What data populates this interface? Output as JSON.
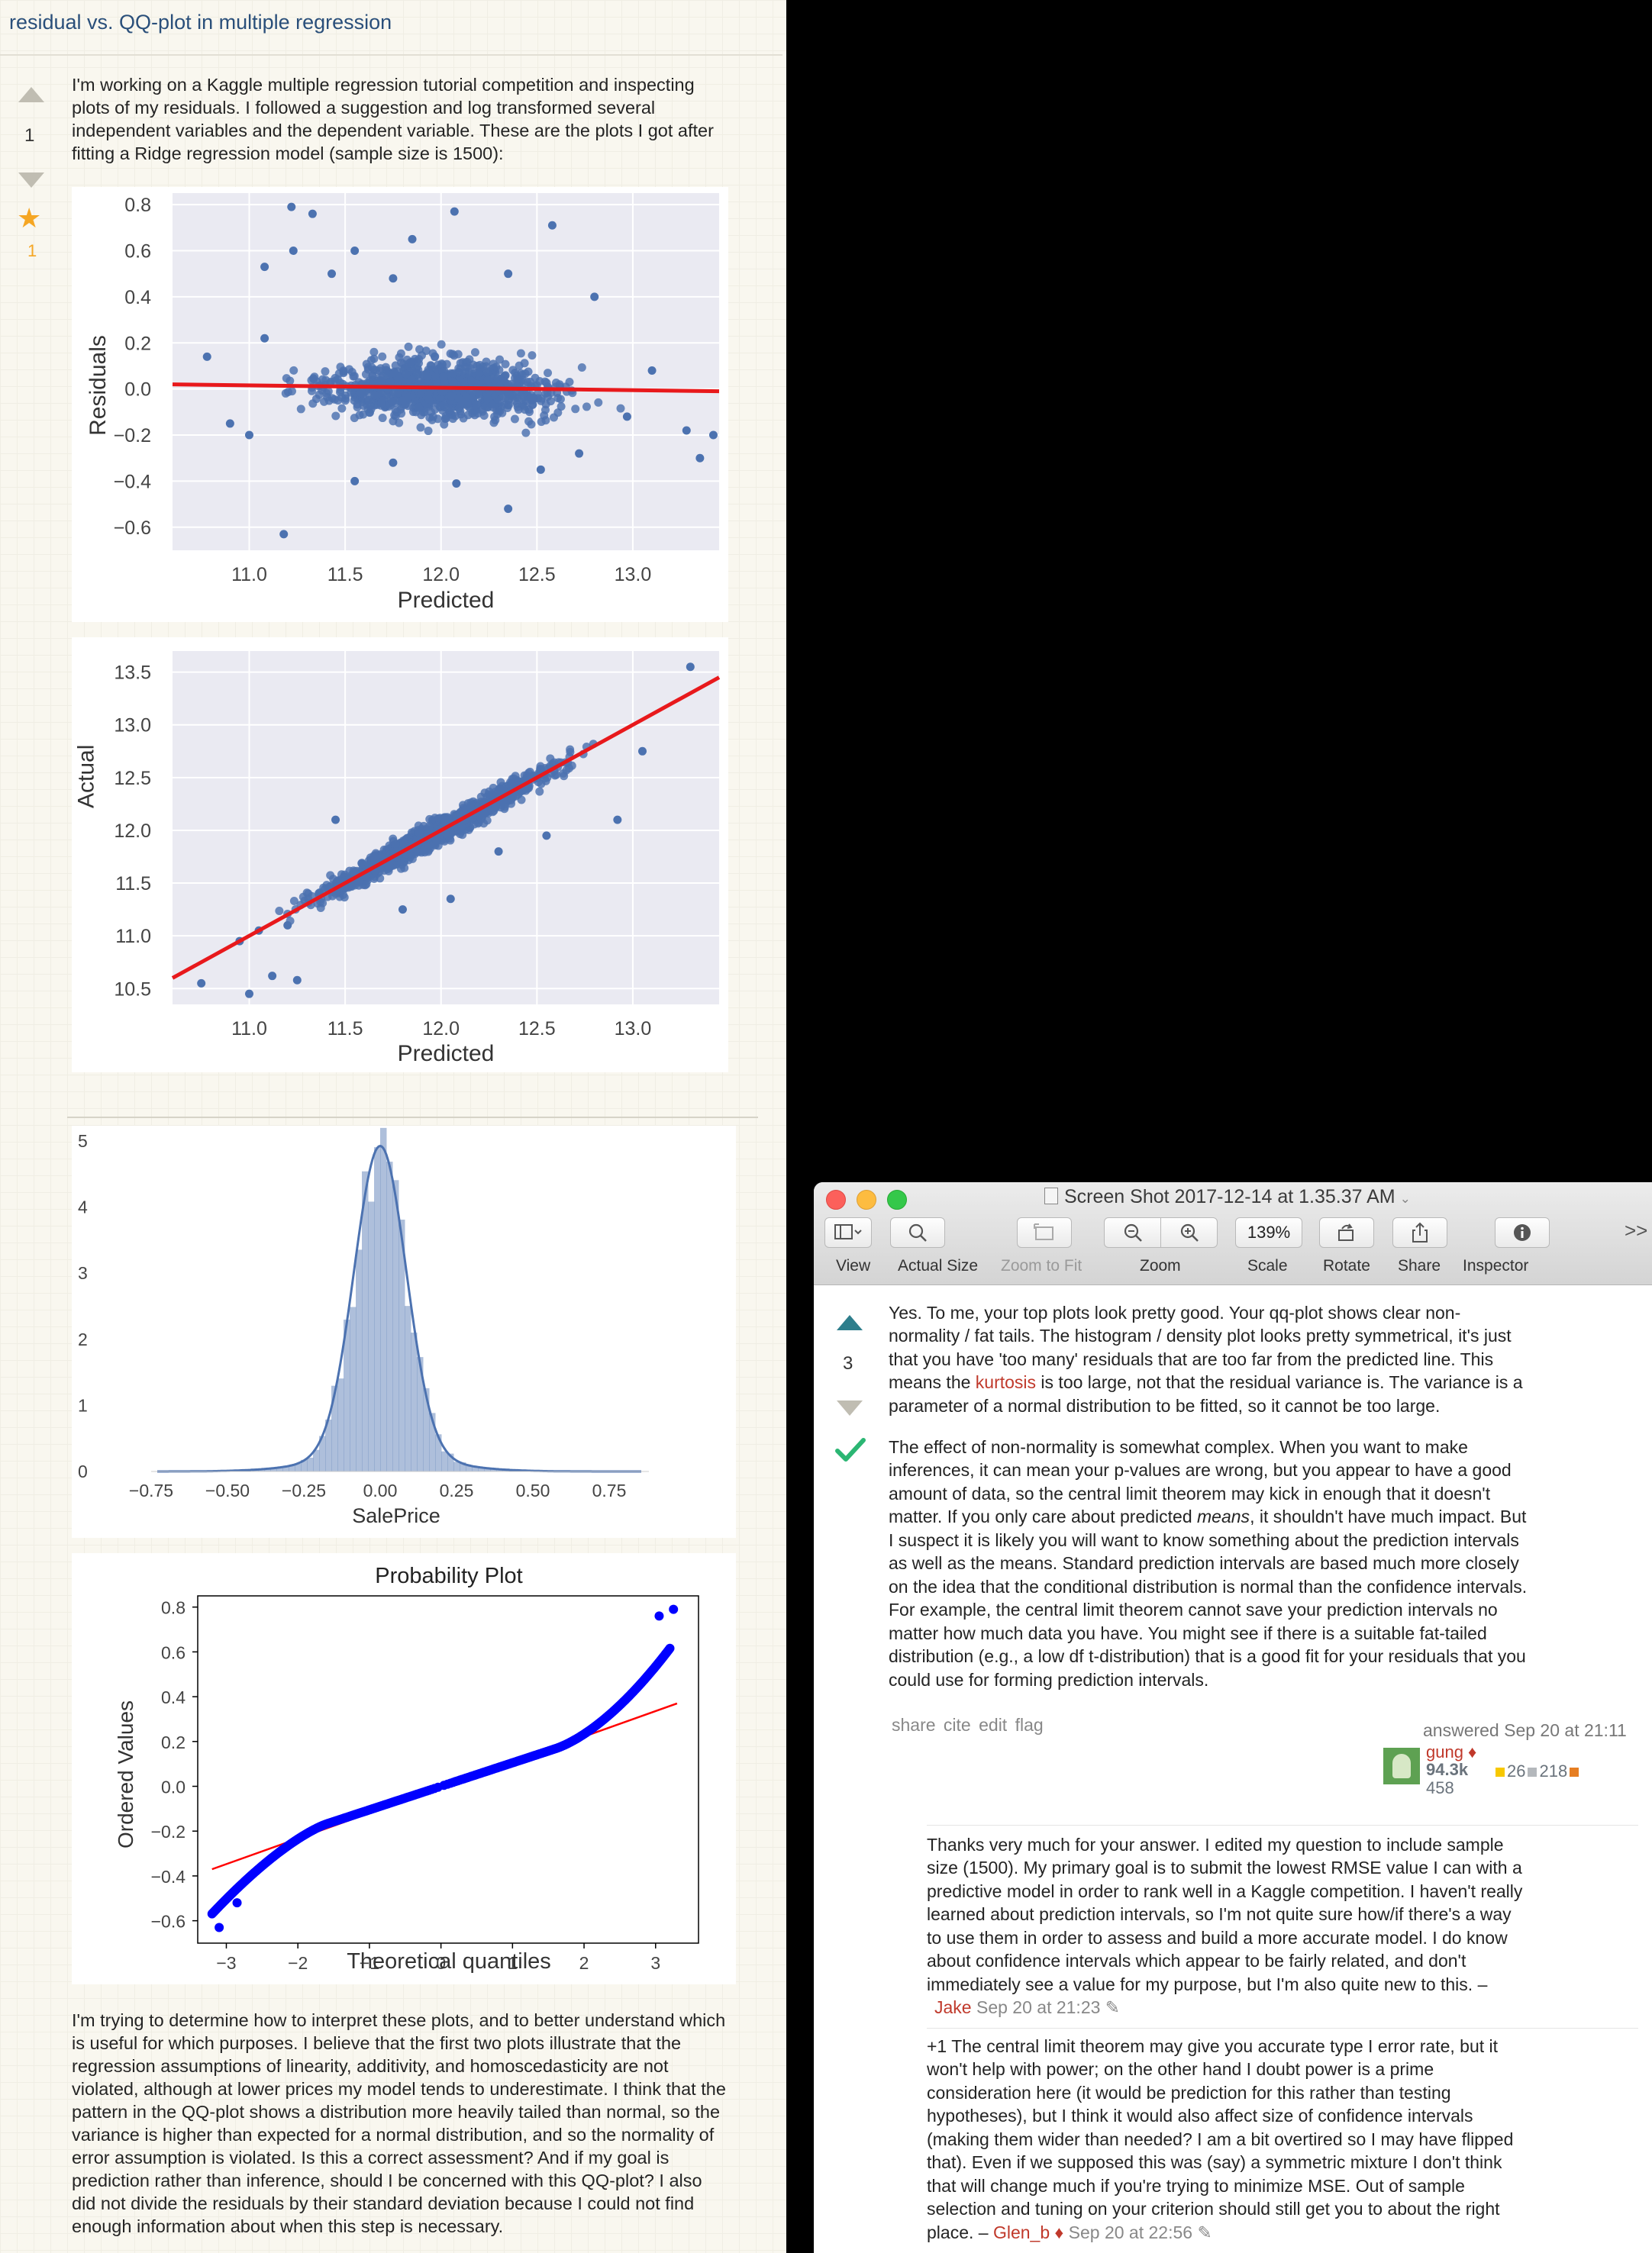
{
  "question": {
    "title": "residual vs. QQ-plot in multiple regression",
    "votes": "1",
    "favorites": "1",
    "intro_lines": [
      "I'm working on a Kaggle multiple regression tutorial competition and inspecting",
      "plots of my residuals. I followed a suggestion and log transformed several",
      "independent variables and the dependent variable. These are the plots I got after",
      "fitting a Ridge regression model (sample size is 1500):"
    ],
    "outro_lines": [
      "I'm trying to determine how to interpret these plots, and to better understand which",
      "is useful for which purposes. I believe that the first two plots illustrate that the",
      "regression assumptions of linearity, additivity, and homoscedasticity are not",
      "violated, although at lower prices my model tends to underestimate. I think that the",
      "pattern in the QQ-plot shows a distribution more heavily tailed than normal, so the",
      "variance is higher than expected for a normal distribution, and so the normality of",
      "error assumption is violated. Is this a correct assessment? And if my goal is",
      "prediction rather than inference, should I be concerned with this QQ-plot? I also",
      "did not divide the residuals by their standard deviation because I could not find",
      "enough information about when this step is necessary."
    ]
  },
  "chart_data": [
    {
      "type": "scatter",
      "xlabel": "Predicted",
      "ylabel": "Residuals",
      "xlim": [
        10.6,
        13.45
      ],
      "ylim": [
        -0.7,
        0.85
      ],
      "xticks": [
        "11.0",
        "11.5",
        "12.0",
        "12.5",
        "13.0"
      ],
      "yticks": [
        "0.8",
        "0.6",
        "0.4",
        "0.2",
        "0.0",
        "−0.2",
        "−0.4",
        "−0.6"
      ],
      "point_count": 1500,
      "point_color": "#4c72b0",
      "fit_line": {
        "x": [
          10.6,
          13.45
        ],
        "y": [
          0.02,
          -0.01
        ],
        "color": "#e8191c"
      },
      "outliers": [
        [
          11.22,
          0.79
        ],
        [
          11.33,
          0.76
        ],
        [
          11.08,
          0.53
        ],
        [
          11.23,
          0.6
        ],
        [
          11.55,
          0.6
        ],
        [
          12.07,
          0.77
        ],
        [
          12.58,
          0.71
        ],
        [
          11.85,
          0.65
        ],
        [
          11.43,
          0.5
        ],
        [
          11.75,
          0.48
        ],
        [
          12.35,
          0.5
        ],
        [
          12.8,
          0.4
        ],
        [
          10.78,
          0.14
        ],
        [
          11.08,
          0.22
        ],
        [
          10.9,
          -0.15
        ],
        [
          11.0,
          -0.2
        ],
        [
          11.18,
          -0.63
        ],
        [
          11.55,
          -0.4
        ],
        [
          12.08,
          -0.41
        ],
        [
          12.35,
          -0.52
        ],
        [
          12.52,
          -0.35
        ],
        [
          12.97,
          -0.12
        ],
        [
          13.35,
          -0.3
        ],
        [
          13.28,
          -0.18
        ],
        [
          13.1,
          0.08
        ],
        [
          13.42,
          -0.2
        ],
        [
          11.75,
          -0.32
        ],
        [
          12.72,
          -0.28
        ]
      ]
    },
    {
      "type": "scatter",
      "xlabel": "Predicted",
      "ylabel": "Actual",
      "xlim": [
        10.6,
        13.45
      ],
      "ylim": [
        10.35,
        13.7
      ],
      "xticks": [
        "11.0",
        "11.5",
        "12.0",
        "12.5",
        "13.0"
      ],
      "yticks": [
        "13.5",
        "13.0",
        "12.5",
        "12.0",
        "11.5",
        "11.0",
        "10.5"
      ],
      "point_count": 1500,
      "point_color": "#4c72b0",
      "fit_line": {
        "x": [
          10.6,
          13.45
        ],
        "y": [
          10.6,
          13.45
        ],
        "color": "#e8191c"
      },
      "outliers": [
        [
          10.75,
          10.55
        ],
        [
          10.95,
          10.95
        ],
        [
          11.0,
          10.45
        ],
        [
          11.12,
          10.62
        ],
        [
          11.25,
          10.58
        ],
        [
          11.2,
          11.1
        ],
        [
          11.45,
          12.1
        ],
        [
          11.55,
          11.6
        ],
        [
          12.55,
          11.95
        ],
        [
          12.05,
          11.35
        ],
        [
          13.3,
          13.55
        ],
        [
          12.92,
          12.1
        ],
        [
          11.05,
          11.05
        ],
        [
          12.3,
          11.8
        ],
        [
          11.8,
          11.25
        ],
        [
          13.05,
          12.75
        ]
      ]
    },
    {
      "type": "area",
      "xlabel": "SalePrice",
      "ylabel": "",
      "xlim": [
        -0.75,
        0.88
      ],
      "ylim": [
        0,
        5
      ],
      "xticks": [
        "−0.75",
        "−0.50",
        "−0.25",
        "0.00",
        "0.25",
        "0.50",
        "0.75"
      ],
      "yticks": [
        "5",
        "4",
        "3",
        "2",
        "1",
        "0"
      ],
      "color": "#4c72b0",
      "kde_peak": 4.7,
      "kde_sd": 0.085
    },
    {
      "type": "scatter",
      "title": "Probability Plot",
      "xlabel": "Theoretical quantiles",
      "ylabel": "Ordered Values",
      "xlim": [
        -3.4,
        3.6
      ],
      "ylim": [
        -0.7,
        0.85
      ],
      "xticks": [
        "−3",
        "−2",
        "−1",
        "0",
        "1",
        "2",
        "3"
      ],
      "yticks": [
        "0.8",
        "0.6",
        "0.4",
        "0.2",
        "0.0",
        "−0.2",
        "−0.4",
        "−0.6"
      ],
      "point_color": "#0000ff",
      "fit_line": {
        "x": [
          -3.2,
          3.3
        ],
        "y": [
          -0.37,
          0.37
        ],
        "color": "#ff0000"
      }
    }
  ],
  "preview": {
    "window_title": "Screen Shot 2017-12-14 at 1.35.37 AM",
    "zoom_value": "139%",
    "toolbar_labels": [
      "View",
      "Actual Size",
      "Zoom to Fit",
      "Zoom",
      "Scale",
      "Rotate",
      "Share",
      "Inspector"
    ],
    "more": ">>"
  },
  "answer": {
    "votes": "3",
    "p1_lines": [
      "Yes. To me, your top plots look pretty good. Your qq-plot shows clear non-",
      "normality / fat tails. The histogram / density plot looks pretty symmetrical, it's just",
      "that you have 'too many' residuals that are too far from the predicted line. This"
    ],
    "p1_line4": {
      "before": "means the ",
      "kw": "kurtosis",
      "after": " is too large, not that the residual variance is. The variance is a"
    },
    "p1_line5": "parameter of a normal distribution to be fitted, so it cannot be too large.",
    "p2_lines_a": [
      "The effect of non-normality is somewhat complex. When you want to make",
      "inferences, it can mean your p-values are wrong, but you appear to have a good",
      "amount of data, so the central limit theorem may kick in enough that it doesn't"
    ],
    "p2_means_line": {
      "before": "matter. If you only care about predicted ",
      "em": "means",
      "after": ", it shouldn't have much impact. But"
    },
    "p2_lines_b": [
      "I suspect it is likely you will want to know something about the prediction intervals",
      "as well as the means. Standard prediction intervals are based much more closely",
      "on the idea that the conditional distribution is normal than the confidence intervals.",
      "For example, the central limit theorem cannot save your prediction intervals no",
      "matter how much data you have. You might see if there is a suitable fat-tailed",
      "distribution (e.g., a low df t-distribution) that is a good fit for your residuals that you",
      "could use for forming prediction intervals."
    ],
    "post_menu": "share cite edit flag",
    "answered": "answered Sep 20 at 21:11",
    "user": "gung ♦",
    "rep": "94.3k",
    "gold": "26",
    "silver": "218",
    "bronze": "458"
  },
  "comments": [
    {
      "lines": [
        "Thanks very much for your answer. I edited my question to include sample",
        "size (1500). My primary goal is to submit the lowest RMSE value I can with a",
        "predictive model in order to rank well in a Kaggle competition. I haven't really",
        "learned about prediction intervals, so I'm not quite sure how/if there's a way",
        "to use them in order to assess and build a more accurate model. I do know",
        "about confidence intervals which appear to be fairly related, and don't",
        "immediately see a value for my purpose, but I'm also quite new to this. –"
      ],
      "user": "Jake",
      "time": "Sep 20 at 21:23 ✎"
    },
    {
      "lines": [
        "+1 The central limit theorem may give you accurate type I error rate, but it",
        "won't help with power; on the other hand I doubt power is a prime",
        "consideration here (it would be prediction for this rather than testing",
        "hypotheses), but I think it would also affect size of confidence intervals",
        "(making them wider than needed? I am a bit overtired so I may have flipped",
        "that). Even if we supposed this was (say) a symmetric mixture I don't think",
        "that will change much if you're trying to minimize MSE. Out of sample",
        "selection and tuning on your criterion should still get you to about the right"
      ],
      "last_before": "place. – ",
      "user": "Glen_b ♦",
      "time": " Sep 20 at 22:56 ✎"
    }
  ]
}
